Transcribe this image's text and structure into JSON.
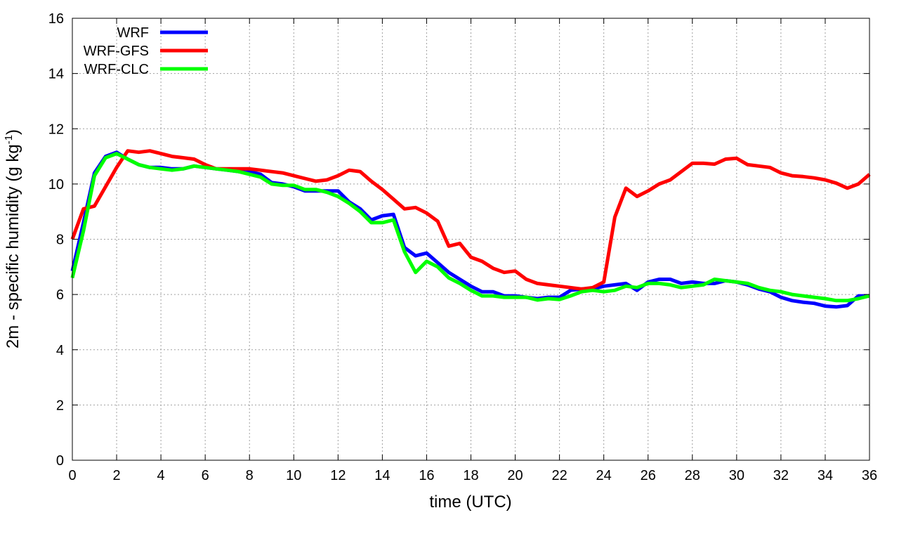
{
  "chart_data": {
    "type": "line",
    "title": "",
    "xlabel": "time (UTC)",
    "ylabel": "2m - specific humidity (g kg",
    "ylabel_sup": "-1",
    "ylabel_end": ")",
    "xlim": [
      0,
      36
    ],
    "ylim": [
      0,
      16
    ],
    "xticks": [
      0,
      2,
      4,
      6,
      8,
      10,
      12,
      14,
      16,
      18,
      20,
      22,
      24,
      26,
      28,
      30,
      32,
      34,
      36
    ],
    "yticks": [
      0,
      2,
      4,
      6,
      8,
      10,
      12,
      14,
      16
    ],
    "grid": true,
    "legend_position": "top-left",
    "x": [
      0,
      0.5,
      1,
      1.5,
      2,
      2.5,
      3,
      3.5,
      4,
      4.5,
      5,
      5.5,
      6,
      6.5,
      7,
      7.5,
      8,
      8.5,
      9,
      9.5,
      10,
      10.5,
      11,
      11.5,
      12,
      12.5,
      13,
      13.5,
      14,
      14.5,
      15,
      15.5,
      16,
      16.5,
      17,
      17.5,
      18,
      18.5,
      19,
      19.5,
      20,
      20.5,
      21,
      21.5,
      22,
      22.5,
      23,
      23.5,
      24,
      24.5,
      25,
      25.5,
      26,
      26.5,
      27,
      27.5,
      28,
      28.5,
      29,
      29.5,
      30,
      30.5,
      31,
      31.5,
      32,
      32.5,
      33,
      33.5,
      34,
      34.5,
      35,
      35.5,
      36
    ],
    "series": [
      {
        "name": "WRF",
        "color": "#0000ff",
        "values": [
          6.85,
          8.6,
          10.4,
          11.0,
          11.15,
          10.9,
          10.7,
          10.6,
          10.6,
          10.55,
          10.55,
          10.65,
          10.6,
          10.55,
          10.5,
          10.45,
          10.45,
          10.35,
          10.05,
          10.0,
          9.9,
          9.75,
          9.75,
          9.75,
          9.75,
          9.35,
          9.1,
          8.7,
          8.85,
          8.9,
          7.7,
          7.4,
          7.5,
          7.15,
          6.8,
          6.55,
          6.3,
          6.1,
          6.1,
          5.95,
          5.95,
          5.9,
          5.85,
          5.9,
          5.9,
          6.15,
          6.2,
          6.2,
          6.3,
          6.35,
          6.4,
          6.15,
          6.45,
          6.55,
          6.55,
          6.4,
          6.45,
          6.4,
          6.4,
          6.5,
          6.45,
          6.35,
          6.2,
          6.1,
          5.9,
          5.78,
          5.72,
          5.68,
          5.58,
          5.55,
          5.6,
          5.95,
          5.95
        ]
      },
      {
        "name": "WRF-GFS",
        "color": "#ff0000",
        "values": [
          8.0,
          9.1,
          9.2,
          9.9,
          10.6,
          11.2,
          11.15,
          11.2,
          11.1,
          11.0,
          10.95,
          10.9,
          10.7,
          10.55,
          10.55,
          10.55,
          10.55,
          10.5,
          10.45,
          10.4,
          10.3,
          10.2,
          10.1,
          10.15,
          10.3,
          10.5,
          10.45,
          10.1,
          9.8,
          9.45,
          9.1,
          9.15,
          8.95,
          8.65,
          7.75,
          7.85,
          7.35,
          7.2,
          6.95,
          6.8,
          6.85,
          6.55,
          6.4,
          6.35,
          6.3,
          6.25,
          6.2,
          6.25,
          6.45,
          8.8,
          9.85,
          9.55,
          9.75,
          10.0,
          10.15,
          10.45,
          10.75,
          10.75,
          10.72,
          10.9,
          10.93,
          10.7,
          10.65,
          10.6,
          10.4,
          10.3,
          10.27,
          10.22,
          10.15,
          10.03,
          9.85,
          10.0,
          10.35
        ]
      },
      {
        "name": "WRF-CLC",
        "color": "#00ff00",
        "values": [
          6.6,
          8.3,
          10.3,
          10.95,
          11.1,
          10.9,
          10.7,
          10.6,
          10.55,
          10.5,
          10.55,
          10.65,
          10.6,
          10.55,
          10.5,
          10.45,
          10.35,
          10.25,
          10.0,
          9.95,
          9.95,
          9.8,
          9.8,
          9.7,
          9.55,
          9.3,
          9.0,
          8.6,
          8.6,
          8.7,
          7.55,
          6.8,
          7.2,
          7.0,
          6.6,
          6.4,
          6.15,
          5.95,
          5.95,
          5.9,
          5.9,
          5.9,
          5.8,
          5.85,
          5.82,
          5.95,
          6.1,
          6.15,
          6.1,
          6.15,
          6.3,
          6.25,
          6.4,
          6.4,
          6.35,
          6.25,
          6.3,
          6.35,
          6.55,
          6.5,
          6.45,
          6.4,
          6.25,
          6.15,
          6.1,
          6.0,
          5.95,
          5.9,
          5.85,
          5.78,
          5.78,
          5.85,
          5.95
        ]
      }
    ]
  }
}
